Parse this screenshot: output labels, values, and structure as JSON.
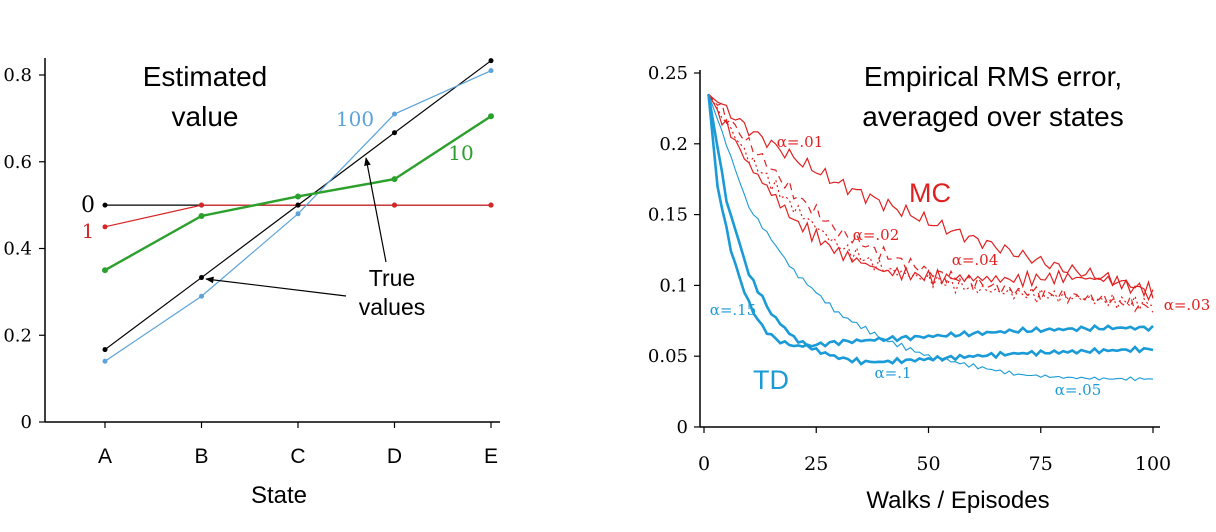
{
  "chart_data": [
    {
      "type": "line",
      "title": "Estimated\nvalue",
      "xlabel": "State",
      "ylabel": "",
      "categories": [
        "A",
        "B",
        "C",
        "D",
        "E"
      ],
      "ylim": [
        0,
        0.8
      ],
      "yticks": [
        "0",
        "0.2",
        "0.4",
        "0.6",
        "0.8"
      ],
      "grid": false,
      "series": [
        {
          "name": "0",
          "values": [
            0.5,
            0.5,
            0.5,
            0.5,
            0.5
          ],
          "color": "#000000",
          "label_color": "#000000"
        },
        {
          "name": "1",
          "values": [
            0.45,
            0.5,
            0.5,
            0.5,
            0.5
          ],
          "color": "#d62728",
          "label_color": "#d62728"
        },
        {
          "name": "10",
          "values": [
            0.35,
            0.475,
            0.52,
            0.56,
            0.705
          ],
          "color": "#2ca02c",
          "label_color": "#2ca02c"
        },
        {
          "name": "100",
          "values": [
            0.14,
            0.29,
            0.48,
            0.71,
            0.81
          ],
          "color": "#5ba3d9",
          "label_color": "#5ba3d9"
        },
        {
          "name": "",
          "values": [
            0.167,
            0.333,
            0.5,
            0.667,
            0.833
          ],
          "color": "#000000"
        }
      ],
      "annotation": {
        "text": "True\nvalues"
      }
    },
    {
      "type": "line",
      "title": "Empirical RMS error,\naveraged over states",
      "xlabel": "Walks / Episodes",
      "ylabel": "",
      "xlim": [
        0,
        100
      ],
      "ylim": [
        0,
        0.25
      ],
      "xticks": [
        "0",
        "25",
        "50",
        "75",
        "100"
      ],
      "yticks": [
        "0",
        "0.05",
        "0.1",
        "0.15",
        "0.2",
        "0.25"
      ],
      "grid": false,
      "group_labels": {
        "MC": "MC",
        "TD": "TD"
      },
      "colors": {
        "MC": "#e02020",
        "TD": "#1a9ad6"
      },
      "series": [
        {
          "name": "α=.01",
          "group": "MC",
          "x": [
            1,
            10,
            20,
            30,
            40,
            50,
            60,
            70,
            80,
            90,
            100
          ],
          "values": [
            0.235,
            0.21,
            0.19,
            0.172,
            0.158,
            0.145,
            0.133,
            0.122,
            0.112,
            0.105,
            0.094
          ]
        },
        {
          "name": "α=.02",
          "group": "MC",
          "x": [
            1,
            10,
            20,
            30,
            40,
            50,
            60,
            70,
            80,
            90,
            100
          ],
          "values": [
            0.235,
            0.2,
            0.165,
            0.138,
            0.122,
            0.11,
            0.102,
            0.096,
            0.093,
            0.09,
            0.084
          ]
        },
        {
          "name": "α=.03",
          "group": "MC",
          "x": [
            1,
            10,
            20,
            30,
            40,
            50,
            60,
            70,
            80,
            90,
            100
          ],
          "values": [
            0.235,
            0.19,
            0.155,
            0.128,
            0.112,
            0.104,
            0.098,
            0.094,
            0.092,
            0.089,
            0.087
          ]
        },
        {
          "name": "α=.04",
          "group": "MC",
          "x": [
            1,
            10,
            20,
            30,
            40,
            50,
            60,
            70,
            80,
            90,
            100
          ],
          "values": [
            0.235,
            0.185,
            0.146,
            0.123,
            0.11,
            0.106,
            0.105,
            0.104,
            0.106,
            0.104,
            0.096
          ]
        },
        {
          "name": "α=.05",
          "group": "TD",
          "x": [
            1,
            10,
            20,
            30,
            40,
            50,
            60,
            70,
            80,
            90,
            100
          ],
          "values": [
            0.235,
            0.155,
            0.11,
            0.08,
            0.062,
            0.05,
            0.043,
            0.037,
            0.035,
            0.034,
            0.034
          ]
        },
        {
          "name": "α=.1",
          "group": "TD",
          "x": [
            1,
            5,
            10,
            15,
            20,
            25,
            30,
            35,
            40,
            50,
            60,
            70,
            80,
            90,
            100
          ],
          "values": [
            0.235,
            0.16,
            0.108,
            0.08,
            0.063,
            0.054,
            0.049,
            0.046,
            0.046,
            0.048,
            0.05,
            0.052,
            0.053,
            0.054,
            0.055
          ]
        },
        {
          "name": "α=.15",
          "group": "TD",
          "x": [
            1,
            3,
            6,
            9,
            12,
            15,
            18,
            21,
            25,
            30,
            40,
            50,
            60,
            70,
            80,
            90,
            100
          ],
          "values": [
            0.235,
            0.17,
            0.125,
            0.095,
            0.075,
            0.064,
            0.059,
            0.057,
            0.058,
            0.06,
            0.062,
            0.064,
            0.066,
            0.068,
            0.069,
            0.07,
            0.07
          ]
        }
      ]
    }
  ]
}
